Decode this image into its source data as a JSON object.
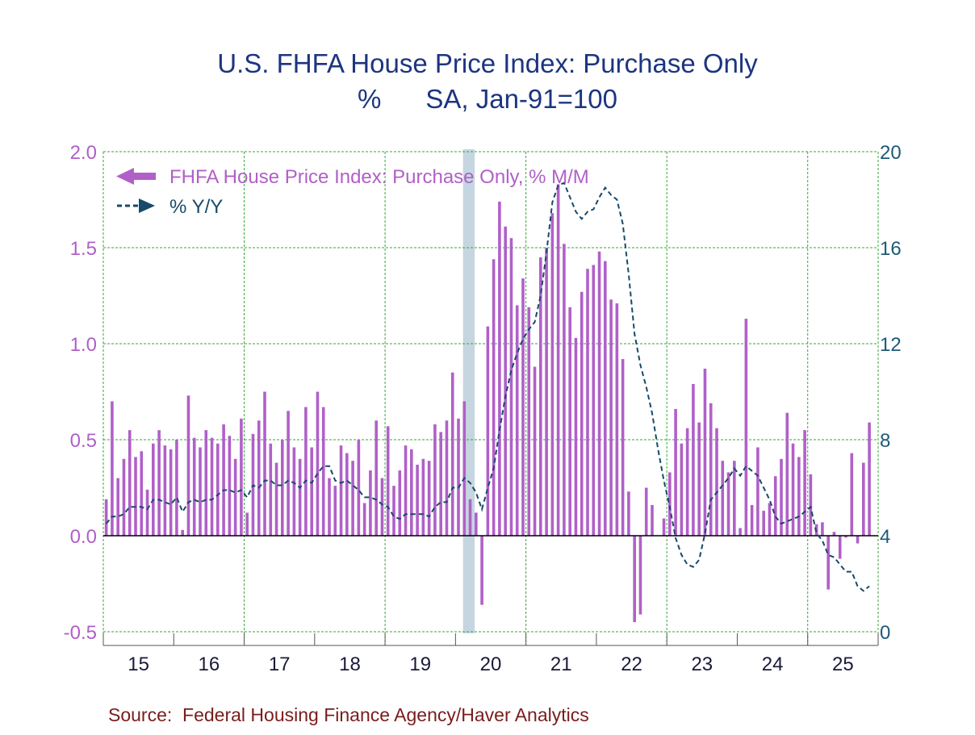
{
  "colors": {
    "title": "#1c3580",
    "bars": "#b060c8",
    "line": "#174a6a",
    "grid": "#3aa43a",
    "recession": "#c6d6e0",
    "left_axis": "#b060c8",
    "right_axis": "#1d5a78",
    "source": "#7a1c1c"
  },
  "source": "Source:  Federal Housing Finance Agency/Haver Analytics",
  "chart_data": {
    "type": "bar",
    "title": "U.S. FHFA House Price Index: Purchase Only",
    "subtitle": "%      SA, Jan-91=100",
    "x_tick_labels": [
      "15",
      "16",
      "17",
      "18",
      "19",
      "20",
      "21",
      "22",
      "23",
      "24",
      "25"
    ],
    "x_range": [
      "2015-01",
      "2025-12"
    ],
    "left_axis": {
      "ylim": [
        -0.5,
        2.0
      ],
      "ticks": [
        "-0.5",
        "0.0",
        "0.5",
        "1.0",
        "1.5",
        "2.0"
      ]
    },
    "right_axis": {
      "ylim": [
        0,
        20
      ],
      "ticks": [
        "0",
        "4",
        "8",
        "12",
        "16",
        "20"
      ]
    },
    "grid": true,
    "legend_position": "top-left",
    "recession_shading": [
      "2020-02",
      "2020-04"
    ],
    "start_month": "2015-01",
    "series": [
      {
        "name": "FHFA House Price Index: Purchase Only, % M/M",
        "type": "bar",
        "axis": "left",
        "values": [
          0.19,
          0.7,
          0.3,
          0.4,
          0.55,
          0.41,
          0.44,
          0.24,
          0.48,
          0.55,
          0.47,
          0.45,
          0.5,
          0.03,
          0.73,
          0.51,
          0.46,
          0.55,
          0.51,
          0.48,
          0.58,
          0.52,
          0.4,
          0.61,
          0.12,
          0.53,
          0.6,
          0.75,
          0.48,
          0.38,
          0.5,
          0.65,
          0.46,
          0.4,
          0.67,
          0.46,
          0.75,
          0.67,
          0.3,
          0.26,
          0.47,
          0.43,
          0.39,
          0.5,
          0.17,
          0.34,
          0.6,
          0.3,
          0.57,
          0.26,
          0.34,
          0.47,
          0.45,
          0.37,
          0.4,
          0.39,
          0.58,
          0.54,
          0.6,
          0.85,
          0.61,
          0.7,
          0.19,
          0.12,
          -0.36,
          1.09,
          1.44,
          1.74,
          1.61,
          1.55,
          1.2,
          1.34,
          1.19,
          0.88,
          1.45,
          1.5,
          1.68,
          1.83,
          1.52,
          1.19,
          1.03,
          1.27,
          1.39,
          1.41,
          1.48,
          1.43,
          1.23,
          1.21,
          0.92,
          0.23,
          -0.45,
          -0.41,
          0.25,
          0.16,
          0.0,
          0.09,
          0.33,
          0.66,
          0.48,
          0.56,
          0.79,
          0.59,
          0.87,
          0.69,
          0.56,
          0.39,
          0.33,
          0.39,
          0.04,
          1.13,
          0.16,
          0.46,
          0.13,
          0.17,
          0.31,
          0.4,
          0.64,
          0.48,
          0.41,
          0.55,
          0.32,
          0.06,
          0.07,
          -0.28,
          0.02,
          -0.12,
          -0.01,
          0.43,
          -0.04,
          0.38,
          0.59
        ]
      },
      {
        "name": "% Y/Y",
        "type": "line",
        "axis": "right",
        "values": [
          4.5,
          4.8,
          4.8,
          4.9,
          5.2,
          5.2,
          5.2,
          5.1,
          5.5,
          5.5,
          5.4,
          5.3,
          5.6,
          5.0,
          5.4,
          5.5,
          5.4,
          5.5,
          5.5,
          5.7,
          5.9,
          5.9,
          5.8,
          5.9,
          5.6,
          6.1,
          6.0,
          6.3,
          6.3,
          6.1,
          6.1,
          6.3,
          6.2,
          6.0,
          6.3,
          6.2,
          6.6,
          6.9,
          6.9,
          6.3,
          6.2,
          6.3,
          6.1,
          5.9,
          5.6,
          5.6,
          5.5,
          5.3,
          5.2,
          4.8,
          4.7,
          4.9,
          4.9,
          4.9,
          4.9,
          4.8,
          5.2,
          5.4,
          5.4,
          6.0,
          6.0,
          6.4,
          6.2,
          5.8,
          5.1,
          6.0,
          6.8,
          8.4,
          9.8,
          10.9,
          11.6,
          12.2,
          12.6,
          12.9,
          14.0,
          15.8,
          17.9,
          18.6,
          18.7,
          18.1,
          17.5,
          17.2,
          17.5,
          17.6,
          18.1,
          18.5,
          18.2,
          18.0,
          17.0,
          14.9,
          12.4,
          11.1,
          10.2,
          9.1,
          7.6,
          6.3,
          5.2,
          3.9,
          3.2,
          2.8,
          2.7,
          3.0,
          4.1,
          5.5,
          5.8,
          6.1,
          6.4,
          6.8,
          6.5,
          6.9,
          6.7,
          6.5,
          6.0,
          5.5,
          4.8,
          4.5,
          4.6,
          4.7,
          4.8,
          5.0,
          5.2,
          4.1,
          3.8,
          3.2,
          3.1,
          2.8,
          2.5,
          2.5,
          1.9,
          1.7,
          1.9
        ]
      }
    ]
  }
}
